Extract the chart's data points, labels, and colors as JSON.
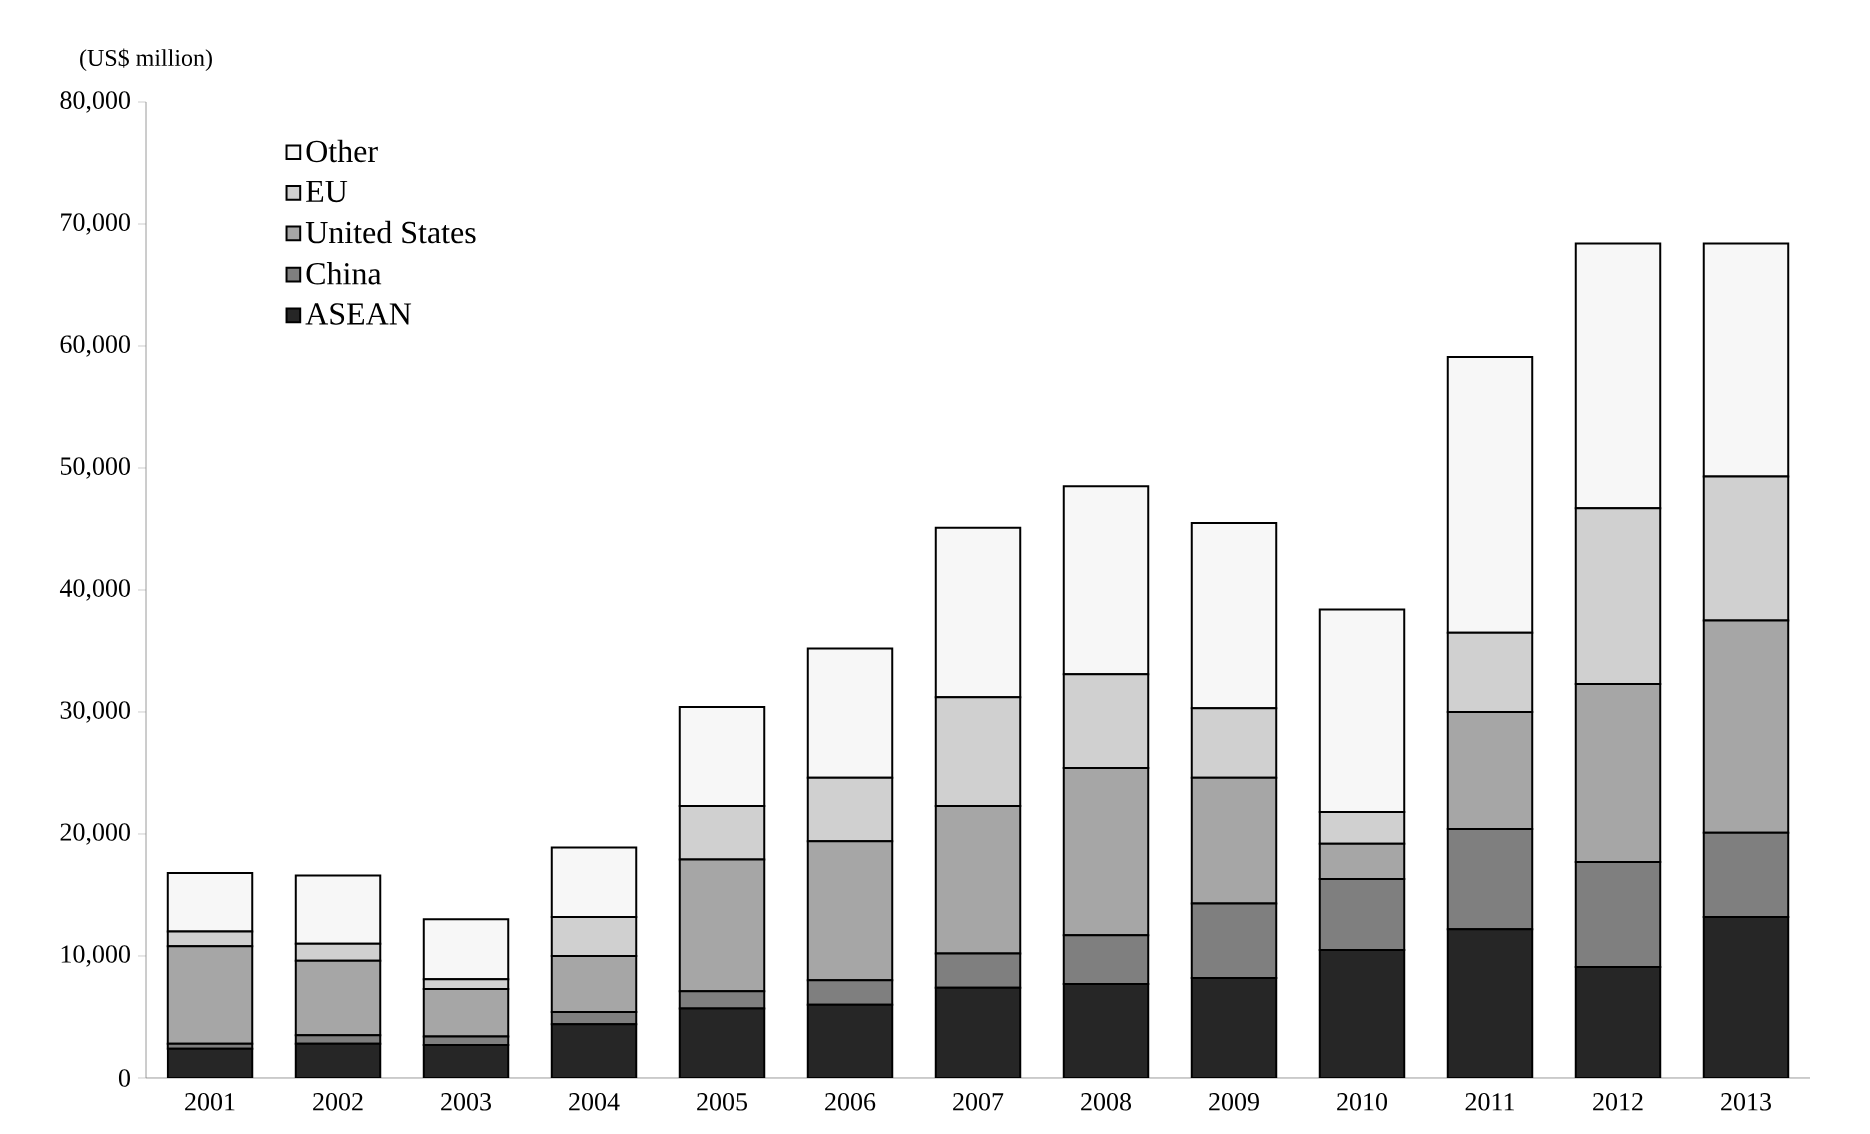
{
  "chart_data": {
    "type": "bar",
    "stacked": true,
    "ylabel": "(US$ million)",
    "categories": [
      "2001",
      "2002",
      "2003",
      "2004",
      "2005",
      "2006",
      "2007",
      "2008",
      "2009",
      "2010",
      "2011",
      "2012",
      "2013"
    ],
    "series": [
      {
        "name": "ASEAN",
        "color": "#262626",
        "values": [
          2400,
          2800,
          2700,
          4400,
          5700,
          6000,
          7400,
          7700,
          8200,
          10500,
          12200,
          9100,
          13200
        ]
      },
      {
        "name": "China",
        "color": "#7f7f7f",
        "values": [
          400,
          700,
          700,
          1000,
          1400,
          2000,
          2800,
          4000,
          6100,
          5800,
          8200,
          8600,
          6900
        ]
      },
      {
        "name": "United States",
        "color": "#a6a6a6",
        "values": [
          8000,
          6100,
          3900,
          4600,
          10800,
          11400,
          12100,
          13700,
          10300,
          2900,
          9600,
          14600,
          17400
        ]
      },
      {
        "name": "EU",
        "color": "#d0d0d0",
        "values": [
          1200,
          1400,
          800,
          3200,
          4400,
          5200,
          8900,
          7700,
          5700,
          2600,
          6500,
          14400,
          11800
        ]
      },
      {
        "name": "Other",
        "color": "#f7f7f7",
        "values": [
          4800,
          5600,
          4900,
          5700,
          8100,
          10600,
          13900,
          15400,
          15200,
          16600,
          22600,
          21700,
          19100
        ]
      }
    ],
    "ylim": [
      0,
      80000
    ],
    "yticks": [
      {
        "value": 0,
        "label": "0"
      },
      {
        "value": 10000,
        "label": "10,000"
      },
      {
        "value": 20000,
        "label": "20,000"
      },
      {
        "value": 30000,
        "label": "30,000"
      },
      {
        "value": 40000,
        "label": "40,000"
      },
      {
        "value": 50000,
        "label": "50,000"
      },
      {
        "value": 60000,
        "label": "60,000"
      },
      {
        "value": 70000,
        "label": "70,000"
      },
      {
        "value": 80000,
        "label": "80,000"
      }
    ],
    "legend": "top left",
    "grid": false
  }
}
